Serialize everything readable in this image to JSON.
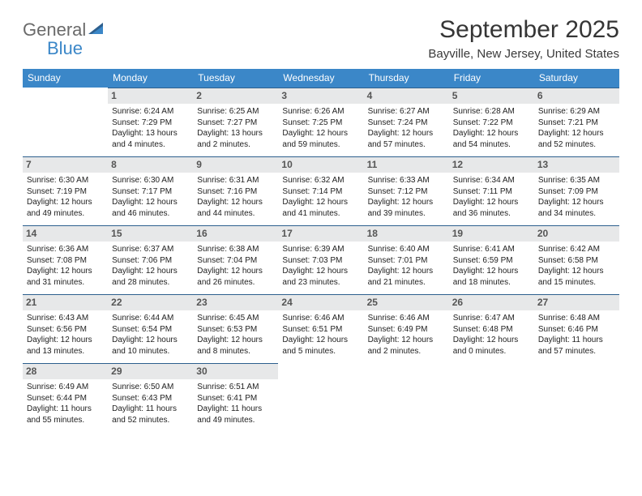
{
  "logo": {
    "general": "General",
    "blue": "Blue"
  },
  "title": "September 2025",
  "location": "Bayville, New Jersey, United States",
  "colors": {
    "header_bg": "#3b87c8",
    "header_text": "#ffffff",
    "date_bar_bg": "#e7e8e9",
    "date_bar_border": "#2d5f8e",
    "logo_gray": "#6a6a6a",
    "logo_blue": "#3b87c8"
  },
  "dayNames": [
    "Sunday",
    "Monday",
    "Tuesday",
    "Wednesday",
    "Thursday",
    "Friday",
    "Saturday"
  ],
  "weeks": [
    [
      {
        "date": "",
        "empty": true
      },
      {
        "date": "1",
        "sunrise": "Sunrise: 6:24 AM",
        "sunset": "Sunset: 7:29 PM",
        "daylight": "Daylight: 13 hours and 4 minutes."
      },
      {
        "date": "2",
        "sunrise": "Sunrise: 6:25 AM",
        "sunset": "Sunset: 7:27 PM",
        "daylight": "Daylight: 13 hours and 2 minutes."
      },
      {
        "date": "3",
        "sunrise": "Sunrise: 6:26 AM",
        "sunset": "Sunset: 7:25 PM",
        "daylight": "Daylight: 12 hours and 59 minutes."
      },
      {
        "date": "4",
        "sunrise": "Sunrise: 6:27 AM",
        "sunset": "Sunset: 7:24 PM",
        "daylight": "Daylight: 12 hours and 57 minutes."
      },
      {
        "date": "5",
        "sunrise": "Sunrise: 6:28 AM",
        "sunset": "Sunset: 7:22 PM",
        "daylight": "Daylight: 12 hours and 54 minutes."
      },
      {
        "date": "6",
        "sunrise": "Sunrise: 6:29 AM",
        "sunset": "Sunset: 7:21 PM",
        "daylight": "Daylight: 12 hours and 52 minutes."
      }
    ],
    [
      {
        "date": "7",
        "sunrise": "Sunrise: 6:30 AM",
        "sunset": "Sunset: 7:19 PM",
        "daylight": "Daylight: 12 hours and 49 minutes."
      },
      {
        "date": "8",
        "sunrise": "Sunrise: 6:30 AM",
        "sunset": "Sunset: 7:17 PM",
        "daylight": "Daylight: 12 hours and 46 minutes."
      },
      {
        "date": "9",
        "sunrise": "Sunrise: 6:31 AM",
        "sunset": "Sunset: 7:16 PM",
        "daylight": "Daylight: 12 hours and 44 minutes."
      },
      {
        "date": "10",
        "sunrise": "Sunrise: 6:32 AM",
        "sunset": "Sunset: 7:14 PM",
        "daylight": "Daylight: 12 hours and 41 minutes."
      },
      {
        "date": "11",
        "sunrise": "Sunrise: 6:33 AM",
        "sunset": "Sunset: 7:12 PM",
        "daylight": "Daylight: 12 hours and 39 minutes."
      },
      {
        "date": "12",
        "sunrise": "Sunrise: 6:34 AM",
        "sunset": "Sunset: 7:11 PM",
        "daylight": "Daylight: 12 hours and 36 minutes."
      },
      {
        "date": "13",
        "sunrise": "Sunrise: 6:35 AM",
        "sunset": "Sunset: 7:09 PM",
        "daylight": "Daylight: 12 hours and 34 minutes."
      }
    ],
    [
      {
        "date": "14",
        "sunrise": "Sunrise: 6:36 AM",
        "sunset": "Sunset: 7:08 PM",
        "daylight": "Daylight: 12 hours and 31 minutes."
      },
      {
        "date": "15",
        "sunrise": "Sunrise: 6:37 AM",
        "sunset": "Sunset: 7:06 PM",
        "daylight": "Daylight: 12 hours and 28 minutes."
      },
      {
        "date": "16",
        "sunrise": "Sunrise: 6:38 AM",
        "sunset": "Sunset: 7:04 PM",
        "daylight": "Daylight: 12 hours and 26 minutes."
      },
      {
        "date": "17",
        "sunrise": "Sunrise: 6:39 AM",
        "sunset": "Sunset: 7:03 PM",
        "daylight": "Daylight: 12 hours and 23 minutes."
      },
      {
        "date": "18",
        "sunrise": "Sunrise: 6:40 AM",
        "sunset": "Sunset: 7:01 PM",
        "daylight": "Daylight: 12 hours and 21 minutes."
      },
      {
        "date": "19",
        "sunrise": "Sunrise: 6:41 AM",
        "sunset": "Sunset: 6:59 PM",
        "daylight": "Daylight: 12 hours and 18 minutes."
      },
      {
        "date": "20",
        "sunrise": "Sunrise: 6:42 AM",
        "sunset": "Sunset: 6:58 PM",
        "daylight": "Daylight: 12 hours and 15 minutes."
      }
    ],
    [
      {
        "date": "21",
        "sunrise": "Sunrise: 6:43 AM",
        "sunset": "Sunset: 6:56 PM",
        "daylight": "Daylight: 12 hours and 13 minutes."
      },
      {
        "date": "22",
        "sunrise": "Sunrise: 6:44 AM",
        "sunset": "Sunset: 6:54 PM",
        "daylight": "Daylight: 12 hours and 10 minutes."
      },
      {
        "date": "23",
        "sunrise": "Sunrise: 6:45 AM",
        "sunset": "Sunset: 6:53 PM",
        "daylight": "Daylight: 12 hours and 8 minutes."
      },
      {
        "date": "24",
        "sunrise": "Sunrise: 6:46 AM",
        "sunset": "Sunset: 6:51 PM",
        "daylight": "Daylight: 12 hours and 5 minutes."
      },
      {
        "date": "25",
        "sunrise": "Sunrise: 6:46 AM",
        "sunset": "Sunset: 6:49 PM",
        "daylight": "Daylight: 12 hours and 2 minutes."
      },
      {
        "date": "26",
        "sunrise": "Sunrise: 6:47 AM",
        "sunset": "Sunset: 6:48 PM",
        "daylight": "Daylight: 12 hours and 0 minutes."
      },
      {
        "date": "27",
        "sunrise": "Sunrise: 6:48 AM",
        "sunset": "Sunset: 6:46 PM",
        "daylight": "Daylight: 11 hours and 57 minutes."
      }
    ],
    [
      {
        "date": "28",
        "sunrise": "Sunrise: 6:49 AM",
        "sunset": "Sunset: 6:44 PM",
        "daylight": "Daylight: 11 hours and 55 minutes."
      },
      {
        "date": "29",
        "sunrise": "Sunrise: 6:50 AM",
        "sunset": "Sunset: 6:43 PM",
        "daylight": "Daylight: 11 hours and 52 minutes."
      },
      {
        "date": "30",
        "sunrise": "Sunrise: 6:51 AM",
        "sunset": "Sunset: 6:41 PM",
        "daylight": "Daylight: 11 hours and 49 minutes."
      },
      {
        "date": "",
        "empty": true
      },
      {
        "date": "",
        "empty": true
      },
      {
        "date": "",
        "empty": true
      },
      {
        "date": "",
        "empty": true
      }
    ]
  ]
}
